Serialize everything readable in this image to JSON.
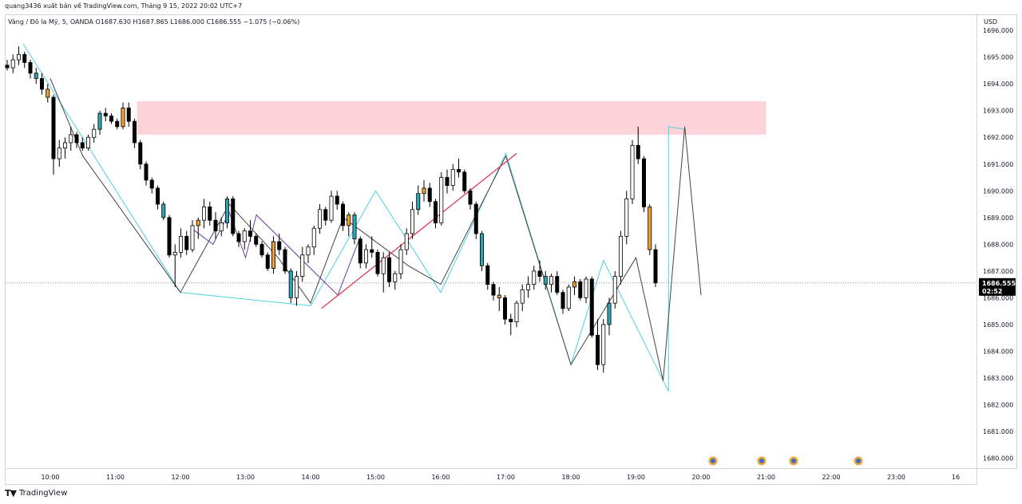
{
  "header": {
    "publisher": "quang3436 xuất bản về TradingView.com, Tháng 9 15, 2022 20:02 UTC+7",
    "symbol_line": "Vàng / Đô la Mỹ, 5, OANDA  O1687.630  H1687.865  L1686.000  C1686.555  −1.075 (−0.06%)",
    "currency": "USD"
  },
  "footer": {
    "brand": "TradingView"
  },
  "colors": {
    "bull_body": "#ffffff",
    "bear_body": "#000000",
    "highlight_orange": "#f0a030",
    "highlight_teal": "#2aa7b7",
    "zone_fill": "#fbd3d8",
    "zigzag_cyan": "#4dd0e1",
    "zigzag_black": "#444444",
    "zigzag_purple": "#6a3fa0",
    "trendline_red": "#e53950",
    "last_price_bg": "#000000"
  },
  "chart_data": {
    "type": "candlestick",
    "symbol": "Vàng / Đô la Mỹ",
    "timeframe": "5",
    "ylim": [
      1679.6,
      1696.6
    ],
    "yticks": [
      "1680.000",
      "1681.000",
      "1682.000",
      "1683.000",
      "1684.000",
      "1685.000",
      "1686.000",
      "1687.000",
      "1688.000",
      "1689.000",
      "1690.000",
      "1691.000",
      "1692.000",
      "1693.000",
      "1694.000",
      "1695.000",
      "1696.000"
    ],
    "xticks": [
      "10:00",
      "11:00",
      "12:00",
      "13:00",
      "14:00",
      "15:00",
      "16:00",
      "17:00",
      "18:00",
      "19:00",
      "20:00",
      "21:00",
      "22:00",
      "23:00",
      "16"
    ],
    "last_price": "1686.555",
    "countdown": "02:52",
    "supply_zone": {
      "from_time": "11:20",
      "to_time": "21:00",
      "low": 1692.1,
      "high": 1693.35
    },
    "series": [
      {
        "name": "cyan-zigzag",
        "color": "#4dd0e1",
        "points": [
          [
            "09:35",
            1695.5
          ],
          [
            "12:00",
            1686.2
          ],
          [
            "14:00",
            1685.7
          ],
          [
            "15:00",
            1690.0
          ],
          [
            "16:00",
            1686.2
          ],
          [
            "17:00",
            1691.4
          ],
          [
            "18:00",
            1683.5
          ],
          [
            "18:30",
            1687.4
          ],
          [
            "19:30",
            1682.5
          ],
          [
            "19:30",
            1692.4
          ],
          [
            "19:45",
            1692.3
          ]
        ]
      },
      {
        "name": "black-zigzag",
        "color": "#444444",
        "points": [
          [
            "10:00",
            1694.2
          ],
          [
            "10:30",
            1691.3
          ],
          [
            "12:00",
            1686.2
          ],
          [
            "12:45",
            1689.5
          ],
          [
            "13:30",
            1687.5
          ],
          [
            "14:00",
            1685.8
          ],
          [
            "14:30",
            1689.0
          ],
          [
            "15:30",
            1687.2
          ],
          [
            "16:00",
            1686.5
          ],
          [
            "17:00",
            1691.3
          ],
          [
            "18:00",
            1683.5
          ],
          [
            "19:00",
            1687.5
          ],
          [
            "19:25",
            1682.9
          ],
          [
            "19:45",
            1692.4
          ],
          [
            "20:00",
            1686.1
          ]
        ]
      },
      {
        "name": "purple-zigzag",
        "color": "#6a3fa0",
        "points": [
          [
            "12:10",
            1688.6
          ],
          [
            "12:30",
            1688.0
          ],
          [
            "12:45",
            1689.2
          ],
          [
            "13:00",
            1687.5
          ],
          [
            "13:10",
            1689.1
          ],
          [
            "14:25",
            1686.1
          ],
          [
            "14:45",
            1688.2
          ]
        ]
      },
      {
        "name": "red-trendline",
        "color": "#e53950",
        "points": [
          [
            "14:10",
            1685.6
          ],
          [
            "17:10",
            1691.4
          ]
        ]
      }
    ],
    "candles": [
      [
        "09:35",
        1694.7,
        1694.9,
        1694.5,
        1694.6
      ],
      [
        "09:40",
        1694.6,
        1695.1,
        1694.4,
        1694.9
      ],
      [
        "09:45",
        1694.9,
        1695.4,
        1694.7,
        1695.1
      ],
      [
        "09:50",
        1695.1,
        1695.2,
        1694.6,
        1694.8
      ],
      [
        "09:55",
        1694.8,
        1694.9,
        1694.2,
        1694.4
      ],
      [
        "10:00",
        1694.4,
        1694.6,
        1694.0,
        1694.2
      ],
      [
        "10:05",
        1694.2,
        1694.4,
        1693.6,
        1693.8
      ],
      [
        "10:10",
        1693.8,
        1694.0,
        1693.3,
        1693.5
      ],
      [
        "10:15",
        1693.5,
        1693.6,
        1690.6,
        1691.2
      ],
      [
        "10:20",
        1691.2,
        1691.9,
        1690.9,
        1691.6
      ],
      [
        "10:25",
        1691.6,
        1692.0,
        1691.2,
        1691.8
      ],
      [
        "10:30",
        1691.8,
        1692.4,
        1691.5,
        1692.1
      ],
      [
        "10:35",
        1692.1,
        1692.2,
        1691.6,
        1691.8
      ],
      [
        "10:40",
        1691.8,
        1692.0,
        1691.5,
        1691.6
      ],
      [
        "10:45",
        1691.6,
        1692.1,
        1691.5,
        1692.0
      ],
      [
        "10:50",
        1692.0,
        1692.5,
        1691.8,
        1692.3
      ],
      [
        "10:55",
        1692.3,
        1693.0,
        1692.1,
        1692.9
      ],
      [
        "11:00",
        1692.9,
        1693.1,
        1692.6,
        1692.8
      ],
      [
        "11:05",
        1692.8,
        1692.9,
        1692.5,
        1692.6
      ],
      [
        "11:10",
        1692.6,
        1692.7,
        1692.3,
        1692.4
      ],
      [
        "11:15",
        1692.4,
        1693.3,
        1692.3,
        1693.1
      ],
      [
        "11:20",
        1693.1,
        1693.3,
        1692.4,
        1692.6
      ],
      [
        "11:25",
        1692.6,
        1692.7,
        1691.6,
        1691.8
      ],
      [
        "11:30",
        1691.8,
        1691.9,
        1690.8,
        1691.0
      ],
      [
        "11:35",
        1691.0,
        1691.1,
        1690.2,
        1690.4
      ],
      [
        "11:40",
        1690.4,
        1690.5,
        1689.9,
        1690.1
      ],
      [
        "11:45",
        1690.1,
        1690.2,
        1689.3,
        1689.5
      ],
      [
        "11:50",
        1689.5,
        1689.6,
        1688.9,
        1689.0
      ],
      [
        "11:55",
        1689.0,
        1689.1,
        1687.5,
        1687.6
      ],
      [
        "12:00",
        1687.6,
        1688.0,
        1686.4,
        1687.7
      ],
      [
        "12:05",
        1687.7,
        1688.6,
        1687.5,
        1688.3
      ],
      [
        "12:10",
        1688.3,
        1688.5,
        1687.6,
        1687.8
      ],
      [
        "12:15",
        1687.8,
        1688.9,
        1687.7,
        1688.7
      ],
      [
        "12:20",
        1688.7,
        1689.0,
        1688.2,
        1688.9
      ],
      [
        "12:25",
        1688.9,
        1689.7,
        1688.6,
        1689.4
      ],
      [
        "12:30",
        1689.4,
        1689.6,
        1688.7,
        1688.9
      ],
      [
        "12:35",
        1688.9,
        1689.2,
        1688.2,
        1688.5
      ],
      [
        "12:40",
        1688.5,
        1689.0,
        1688.3,
        1688.8
      ],
      [
        "12:45",
        1688.8,
        1689.8,
        1688.6,
        1689.7
      ],
      [
        "12:50",
        1689.7,
        1689.8,
        1688.3,
        1688.4
      ],
      [
        "12:55",
        1688.4,
        1688.5,
        1687.9,
        1688.1
      ],
      [
        "13:00",
        1688.1,
        1688.6,
        1687.8,
        1688.5
      ],
      [
        "13:05",
        1688.5,
        1688.9,
        1688.1,
        1688.3
      ],
      [
        "13:10",
        1688.3,
        1688.4,
        1687.9,
        1688.0
      ],
      [
        "13:15",
        1688.0,
        1688.1,
        1687.5,
        1687.6
      ],
      [
        "13:20",
        1687.6,
        1687.7,
        1687.0,
        1687.1
      ],
      [
        "13:25",
        1687.1,
        1688.3,
        1686.9,
        1688.1
      ],
      [
        "13:30",
        1688.1,
        1688.4,
        1687.6,
        1687.8
      ],
      [
        "13:35",
        1687.8,
        1687.9,
        1686.9,
        1687.0
      ],
      [
        "13:40",
        1687.0,
        1687.1,
        1685.8,
        1686.0
      ],
      [
        "13:45",
        1686.0,
        1687.0,
        1685.7,
        1686.8
      ],
      [
        "13:50",
        1686.8,
        1687.9,
        1686.6,
        1687.6
      ],
      [
        "13:55",
        1687.6,
        1688.0,
        1687.3,
        1687.9
      ],
      [
        "14:00",
        1687.9,
        1688.7,
        1687.6,
        1688.6
      ],
      [
        "14:05",
        1688.6,
        1689.5,
        1688.4,
        1689.3
      ],
      [
        "14:10",
        1689.3,
        1689.4,
        1688.7,
        1688.9
      ],
      [
        "14:15",
        1688.9,
        1690.0,
        1688.8,
        1689.8
      ],
      [
        "14:20",
        1689.8,
        1690.0,
        1689.3,
        1689.5
      ],
      [
        "14:25",
        1689.5,
        1689.6,
        1688.5,
        1688.7
      ],
      [
        "14:30",
        1688.7,
        1689.2,
        1688.3,
        1689.1
      ],
      [
        "14:35",
        1689.1,
        1689.2,
        1688.0,
        1688.2
      ],
      [
        "14:40",
        1688.2,
        1688.3,
        1687.1,
        1687.3
      ],
      [
        "14:45",
        1687.3,
        1688.0,
        1687.1,
        1687.8
      ],
      [
        "14:50",
        1687.8,
        1688.3,
        1687.5,
        1687.7
      ],
      [
        "14:55",
        1687.7,
        1687.8,
        1686.8,
        1686.9
      ],
      [
        "15:00",
        1686.9,
        1687.7,
        1686.2,
        1687.5
      ],
      [
        "15:05",
        1687.5,
        1687.7,
        1686.4,
        1686.6
      ],
      [
        "15:10",
        1686.6,
        1687.0,
        1686.3,
        1686.9
      ],
      [
        "15:15",
        1686.9,
        1688.0,
        1686.7,
        1687.8
      ],
      [
        "15:20",
        1687.8,
        1688.6,
        1687.6,
        1688.4
      ],
      [
        "15:25",
        1688.4,
        1689.6,
        1688.2,
        1689.3
      ],
      [
        "15:30",
        1689.3,
        1690.2,
        1689.1,
        1689.9
      ],
      [
        "15:35",
        1689.9,
        1690.4,
        1689.6,
        1690.1
      ],
      [
        "15:40",
        1690.1,
        1690.3,
        1689.4,
        1689.6
      ],
      [
        "15:45",
        1689.6,
        1689.7,
        1688.6,
        1688.8
      ],
      [
        "15:50",
        1688.8,
        1690.7,
        1688.7,
        1690.5
      ],
      [
        "15:55",
        1690.5,
        1690.8,
        1689.9,
        1690.2
      ],
      [
        "16:00",
        1690.2,
        1691.0,
        1690.0,
        1690.8
      ],
      [
        "16:05",
        1690.8,
        1691.2,
        1690.5,
        1690.7
      ],
      [
        "16:10",
        1690.7,
        1690.8,
        1689.9,
        1690.0
      ],
      [
        "16:15",
        1690.0,
        1690.1,
        1689.3,
        1689.5
      ],
      [
        "16:20",
        1689.5,
        1689.6,
        1688.2,
        1688.4
      ],
      [
        "16:25",
        1688.4,
        1688.5,
        1687.0,
        1687.2
      ],
      [
        "16:30",
        1687.2,
        1687.3,
        1686.3,
        1686.5
      ],
      [
        "16:35",
        1686.5,
        1686.6,
        1685.9,
        1686.1
      ],
      [
        "16:40",
        1686.1,
        1686.4,
        1685.5,
        1686.0
      ],
      [
        "16:45",
        1686.0,
        1686.1,
        1685.0,
        1685.2
      ],
      [
        "16:50",
        1685.2,
        1685.4,
        1684.6,
        1685.1
      ],
      [
        "16:55",
        1685.1,
        1685.9,
        1684.9,
        1685.8
      ],
      [
        "17:00",
        1685.8,
        1686.5,
        1685.5,
        1686.3
      ],
      [
        "17:05",
        1686.3,
        1686.8,
        1686.0,
        1686.5
      ],
      [
        "17:10",
        1686.5,
        1687.2,
        1686.3,
        1687.0
      ],
      [
        "17:15",
        1687.0,
        1687.4,
        1686.6,
        1686.8
      ],
      [
        "17:20",
        1686.8,
        1687.0,
        1686.3,
        1686.5
      ],
      [
        "17:25",
        1686.5,
        1686.9,
        1686.2,
        1686.8
      ],
      [
        "17:30",
        1686.8,
        1687.0,
        1686.1,
        1686.2
      ],
      [
        "17:35",
        1686.2,
        1686.3,
        1685.4,
        1685.6
      ],
      [
        "17:40",
        1685.6,
        1686.5,
        1685.5,
        1686.4
      ],
      [
        "17:45",
        1686.4,
        1686.8,
        1686.1,
        1686.6
      ],
      [
        "17:50",
        1686.6,
        1686.7,
        1685.9,
        1686.0
      ],
      [
        "17:55",
        1686.0,
        1686.8,
        1685.8,
        1686.7
      ],
      [
        "18:00",
        1686.7,
        1686.8,
        1684.5,
        1684.6
      ],
      [
        "18:05",
        1684.6,
        1685.2,
        1683.3,
        1683.5
      ],
      [
        "18:10",
        1683.5,
        1685.2,
        1683.2,
        1685.0
      ],
      [
        "18:15",
        1685.0,
        1686.0,
        1684.6,
        1685.8
      ],
      [
        "18:20",
        1685.8,
        1687.0,
        1685.6,
        1686.8
      ],
      [
        "18:25",
        1686.8,
        1688.5,
        1686.5,
        1688.3
      ],
      [
        "18:30",
        1688.3,
        1690.0,
        1688.0,
        1689.7
      ],
      [
        "18:35",
        1689.7,
        1691.9,
        1689.5,
        1691.7
      ],
      [
        "18:40",
        1691.7,
        1692.4,
        1691.0,
        1691.2
      ],
      [
        "18:45",
        1691.2,
        1691.3,
        1689.2,
        1689.4
      ],
      [
        "18:50",
        1689.4,
        1689.5,
        1687.6,
        1687.8
      ],
      [
        "18:55",
        1687.8,
        1688.0,
        1686.4,
        1686.555
      ]
    ]
  }
}
